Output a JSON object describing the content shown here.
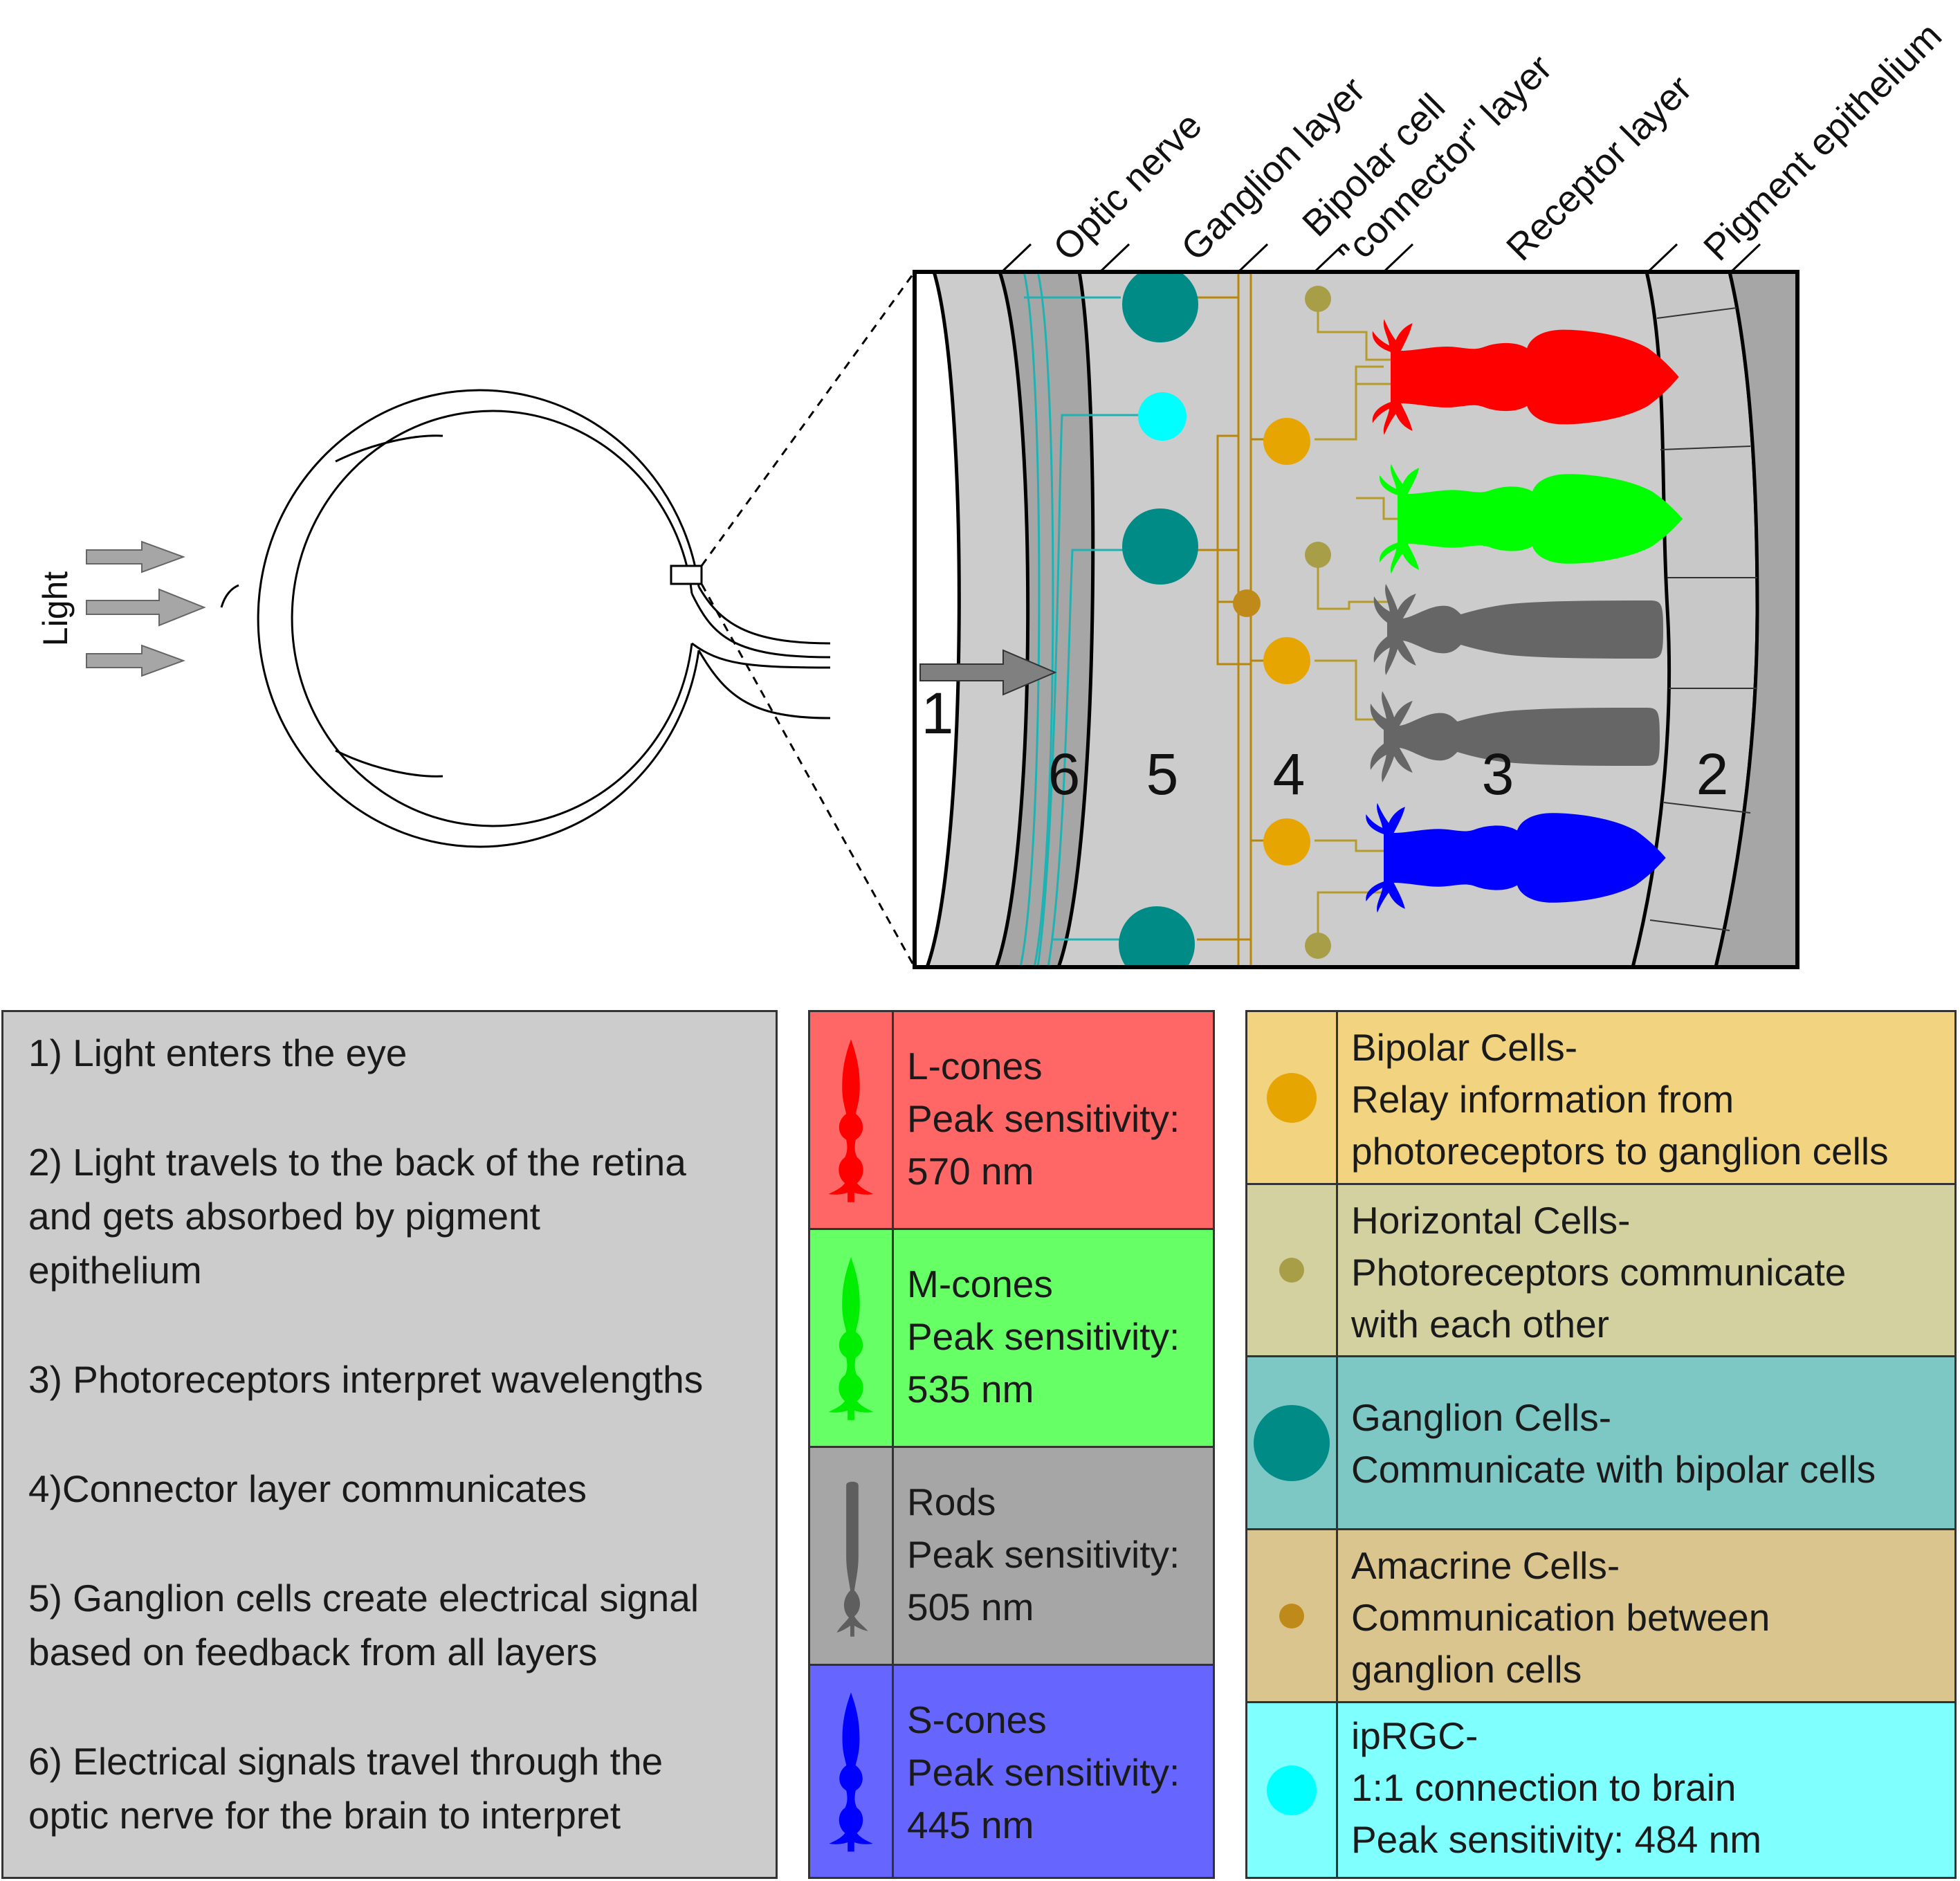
{
  "diagram": {
    "light_label": "Light",
    "layer_labels": {
      "optic_nerve": "Optic nerve",
      "ganglion": "Ganglion layer",
      "bipolar_line1": "Bipolar cell",
      "bipolar_line2": "\"connector\" layer",
      "receptor": "Receptor layer",
      "pigment": "Pigment epithelium"
    },
    "zone_numbers": [
      "1",
      "2",
      "3",
      "4",
      "5",
      "6"
    ]
  },
  "steps": [
    [
      "1) Light enters the eye"
    ],
    [
      "2) Light travels to the back of the retina",
      "and gets absorbed by pigment",
      "epithelium"
    ],
    [
      "3) Photoreceptors interpret wavelengths"
    ],
    [
      "4)Connector layer communicates"
    ],
    [
      "5) Ganglion cells create electrical signal",
      "based on feedback from all layers"
    ],
    [
      "6) Electrical signals travel through the",
      "optic nerve for the brain to interpret"
    ]
  ],
  "photoreceptors": [
    {
      "name": "L-cones",
      "sensitivity_label": "Peak sensitivity:",
      "value": "570 nm",
      "bg": "#ff6666",
      "icon_color": "#ff0000",
      "icon": "cone-icon"
    },
    {
      "name": "M-cones",
      "sensitivity_label": "Peak sensitivity:",
      "value": "535 nm",
      "bg": "#66ff66",
      "icon_color": "#00ee00",
      "icon": "cone-icon"
    },
    {
      "name": "Rods",
      "sensitivity_label": "Peak sensitivity:",
      "value": "505 nm",
      "bg": "#a6a6a6",
      "icon_color": "#5e5e5e",
      "icon": "rod-icon"
    },
    {
      "name": "S-cones",
      "sensitivity_label": "Peak sensitivity:",
      "value": "445 nm",
      "bg": "#6666ff",
      "icon_color": "#0000ff",
      "icon": "cone-icon"
    }
  ],
  "cells": [
    {
      "lines": [
        "Bipolar Cells-",
        "Relay information from",
        "photoreceptors to ganglion cells"
      ],
      "bg": "#f2d480",
      "dot_color": "#e6a500",
      "icon": "bipolar-cell-icon"
    },
    {
      "lines": [
        "Horizontal Cells-",
        "Photoreceptors communicate",
        "with each other"
      ],
      "bg": "#d3d19f",
      "dot_color": "#a89e48",
      "icon": "horizontal-cell-icon"
    },
    {
      "lines": [
        "Ganglion Cells-",
        "Communicate with bipolar cells"
      ],
      "bg": "#7dc8c4",
      "dot_color": "#008b87",
      "icon": "ganglion-cell-icon"
    },
    {
      "lines": [
        "Amacrine Cells-",
        "Communication between",
        "ganglion cells"
      ],
      "bg": "#dbc58e",
      "dot_color": "#c08a1a",
      "icon": "amacrine-cell-icon"
    },
    {
      "lines": [
        "ipRGC-",
        "1:1 connection to brain",
        "Peak sensitivity: 484 nm"
      ],
      "bg": "#80ffff",
      "dot_color": "#00ffff",
      "icon": "iprgc-icon"
    }
  ]
}
